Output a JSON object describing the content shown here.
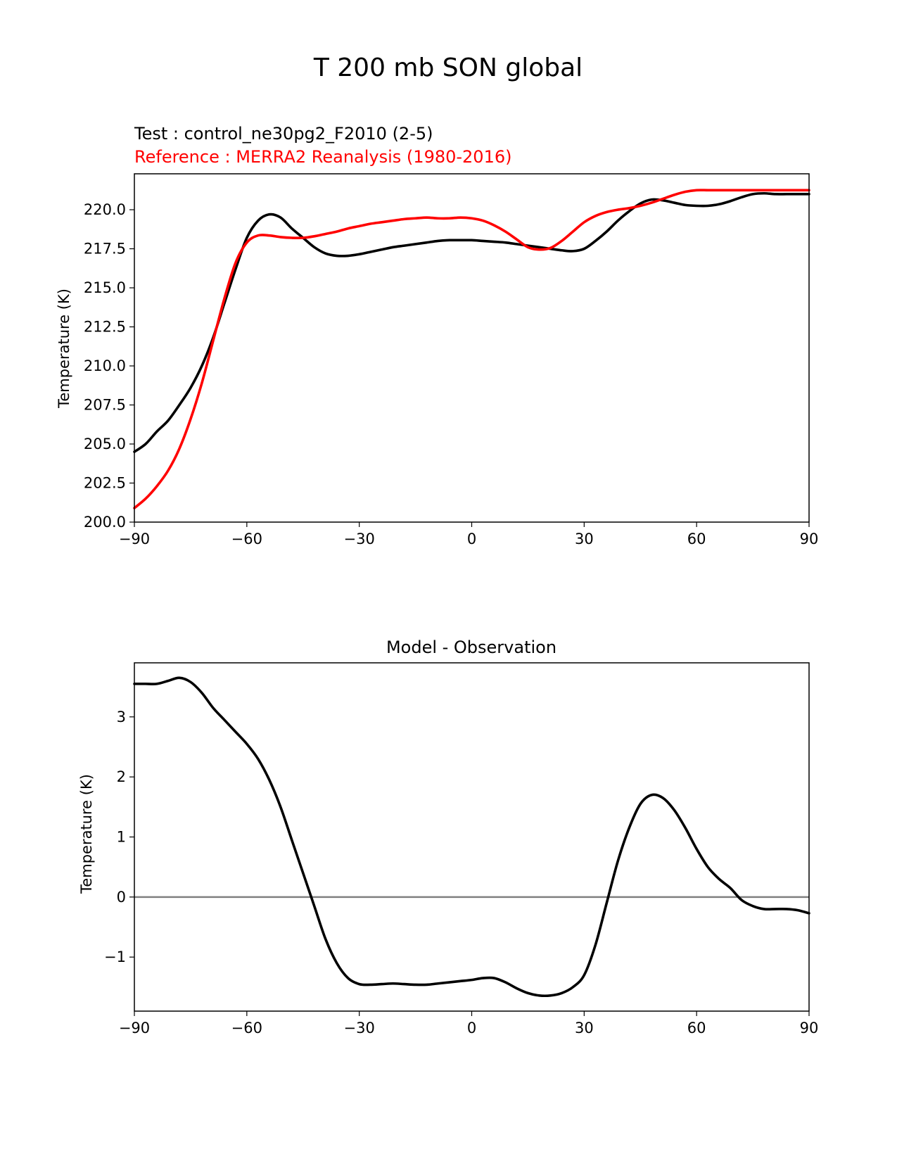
{
  "figure": {
    "suptitle": "T 200 mb SON global"
  },
  "colors": {
    "test_line": "#000000",
    "reference_line": "#ff0000",
    "zero_line": "#808080",
    "axes": "#000000"
  },
  "chart_data": [
    {
      "type": "line",
      "title_test": "Test : control_ne30pg2_F2010 (2-5)",
      "title_reference": "Reference : MERRA2 Reanalysis (1980-2016)",
      "xlabel": "",
      "ylabel": "Temperature (K)",
      "xlim": [
        -90,
        90
      ],
      "ylim": [
        200,
        222.3
      ],
      "xticks": [
        -90,
        -60,
        -30,
        0,
        30,
        60,
        90
      ],
      "xtick_labels": [
        "−90",
        "−60",
        "−30",
        "0",
        "30",
        "60",
        "90"
      ],
      "yticks": [
        200,
        202.5,
        205,
        207.5,
        210,
        212.5,
        215,
        217.5,
        220
      ],
      "ytick_labels": [
        "200.0",
        "202.5",
        "205.0",
        "207.5",
        "210.0",
        "212.5",
        "215.0",
        "217.5",
        "220.0"
      ],
      "series": [
        {
          "name": "Test",
          "color": "#000000",
          "x": [
            -90,
            -87,
            -84,
            -81,
            -78,
            -75,
            -72,
            -69,
            -66,
            -63,
            -60,
            -57,
            -54,
            -51,
            -48,
            -45,
            -42,
            -39,
            -36,
            -33,
            -30,
            -27,
            -24,
            -21,
            -18,
            -15,
            -12,
            -9,
            -6,
            -3,
            0,
            3,
            6,
            9,
            12,
            15,
            18,
            21,
            24,
            27,
            30,
            33,
            36,
            39,
            42,
            45,
            48,
            51,
            54,
            57,
            60,
            63,
            66,
            69,
            72,
            75,
            78,
            81,
            84,
            87,
            90
          ],
          "values": [
            204.5,
            205.0,
            205.8,
            206.5,
            207.5,
            208.6,
            210.0,
            211.8,
            214.0,
            216.2,
            218.2,
            219.3,
            219.7,
            219.5,
            218.8,
            218.2,
            217.6,
            217.2,
            217.05,
            217.05,
            217.15,
            217.3,
            217.45,
            217.6,
            217.7,
            217.8,
            217.9,
            218.0,
            218.05,
            218.05,
            218.05,
            218.0,
            217.95,
            217.9,
            217.8,
            217.7,
            217.6,
            217.5,
            217.4,
            217.35,
            217.5,
            218.0,
            218.6,
            219.3,
            219.9,
            220.4,
            220.65,
            220.6,
            220.45,
            220.3,
            220.25,
            220.25,
            220.35,
            220.55,
            220.8,
            221.0,
            221.05,
            221.0,
            221.0,
            221.0,
            221.0
          ]
        },
        {
          "name": "Reference",
          "color": "#ff0000",
          "x": [
            -90,
            -87,
            -84,
            -81,
            -78,
            -75,
            -72,
            -69,
            -66,
            -63,
            -60,
            -57,
            -54,
            -51,
            -48,
            -45,
            -42,
            -39,
            -36,
            -33,
            -30,
            -27,
            -24,
            -21,
            -18,
            -15,
            -12,
            -9,
            -6,
            -3,
            0,
            3,
            6,
            9,
            12,
            15,
            18,
            21,
            24,
            27,
            30,
            33,
            36,
            39,
            42,
            45,
            48,
            51,
            54,
            57,
            60,
            63,
            66,
            69,
            72,
            75,
            78,
            81,
            84,
            87,
            90
          ],
          "values": [
            200.9,
            201.5,
            202.3,
            203.3,
            204.7,
            206.6,
            208.9,
            211.6,
            214.3,
            216.6,
            217.9,
            218.35,
            218.35,
            218.25,
            218.2,
            218.2,
            218.3,
            218.45,
            218.6,
            218.8,
            218.95,
            219.1,
            219.2,
            219.3,
            219.4,
            219.45,
            219.5,
            219.45,
            219.45,
            219.5,
            219.45,
            219.3,
            219.0,
            218.6,
            218.1,
            217.6,
            217.45,
            217.55,
            218.0,
            218.6,
            219.2,
            219.6,
            219.85,
            220.0,
            220.1,
            220.25,
            220.45,
            220.7,
            220.95,
            221.15,
            221.25,
            221.25,
            221.25,
            221.25,
            221.25,
            221.25,
            221.25,
            221.25,
            221.25,
            221.25,
            221.25
          ]
        }
      ]
    },
    {
      "type": "line",
      "title": "Model - Observation",
      "xlabel": "",
      "ylabel": "Temperature (K)",
      "xlim": [
        -90,
        90
      ],
      "ylim": [
        -1.9,
        3.9
      ],
      "xticks": [
        -90,
        -60,
        -30,
        0,
        30,
        60,
        90
      ],
      "xtick_labels": [
        "−90",
        "−60",
        "−30",
        "0",
        "30",
        "60",
        "90"
      ],
      "yticks": [
        -1,
        0,
        1,
        2,
        3
      ],
      "ytick_labels": [
        "−1",
        "0",
        "1",
        "2",
        "3"
      ],
      "zero_line": 0,
      "series": [
        {
          "name": "Model - Observation",
          "color": "#000000",
          "x": [
            -90,
            -87,
            -84,
            -81,
            -78,
            -75,
            -72,
            -69,
            -66,
            -63,
            -60,
            -57,
            -54,
            -51,
            -48,
            -45,
            -42,
            -39,
            -36,
            -33,
            -30,
            -27,
            -24,
            -21,
            -18,
            -15,
            -12,
            -9,
            -6,
            -3,
            0,
            3,
            6,
            9,
            12,
            15,
            18,
            21,
            24,
            27,
            30,
            33,
            36,
            39,
            42,
            45,
            48,
            51,
            54,
            57,
            60,
            63,
            66,
            69,
            72,
            75,
            78,
            81,
            84,
            87,
            90
          ],
          "values": [
            3.55,
            3.55,
            3.55,
            3.6,
            3.65,
            3.58,
            3.4,
            3.15,
            2.95,
            2.75,
            2.55,
            2.3,
            1.95,
            1.5,
            0.95,
            0.4,
            -0.15,
            -0.7,
            -1.1,
            -1.35,
            -1.45,
            -1.46,
            -1.45,
            -1.44,
            -1.45,
            -1.46,
            -1.46,
            -1.44,
            -1.42,
            -1.4,
            -1.38,
            -1.35,
            -1.35,
            -1.42,
            -1.52,
            -1.6,
            -1.64,
            -1.64,
            -1.6,
            -1.5,
            -1.3,
            -0.8,
            -0.1,
            0.6,
            1.15,
            1.55,
            1.7,
            1.65,
            1.45,
            1.15,
            0.8,
            0.5,
            0.3,
            0.15,
            -0.05,
            -0.15,
            -0.2,
            -0.2,
            -0.2,
            -0.22,
            -0.27
          ]
        }
      ]
    }
  ]
}
